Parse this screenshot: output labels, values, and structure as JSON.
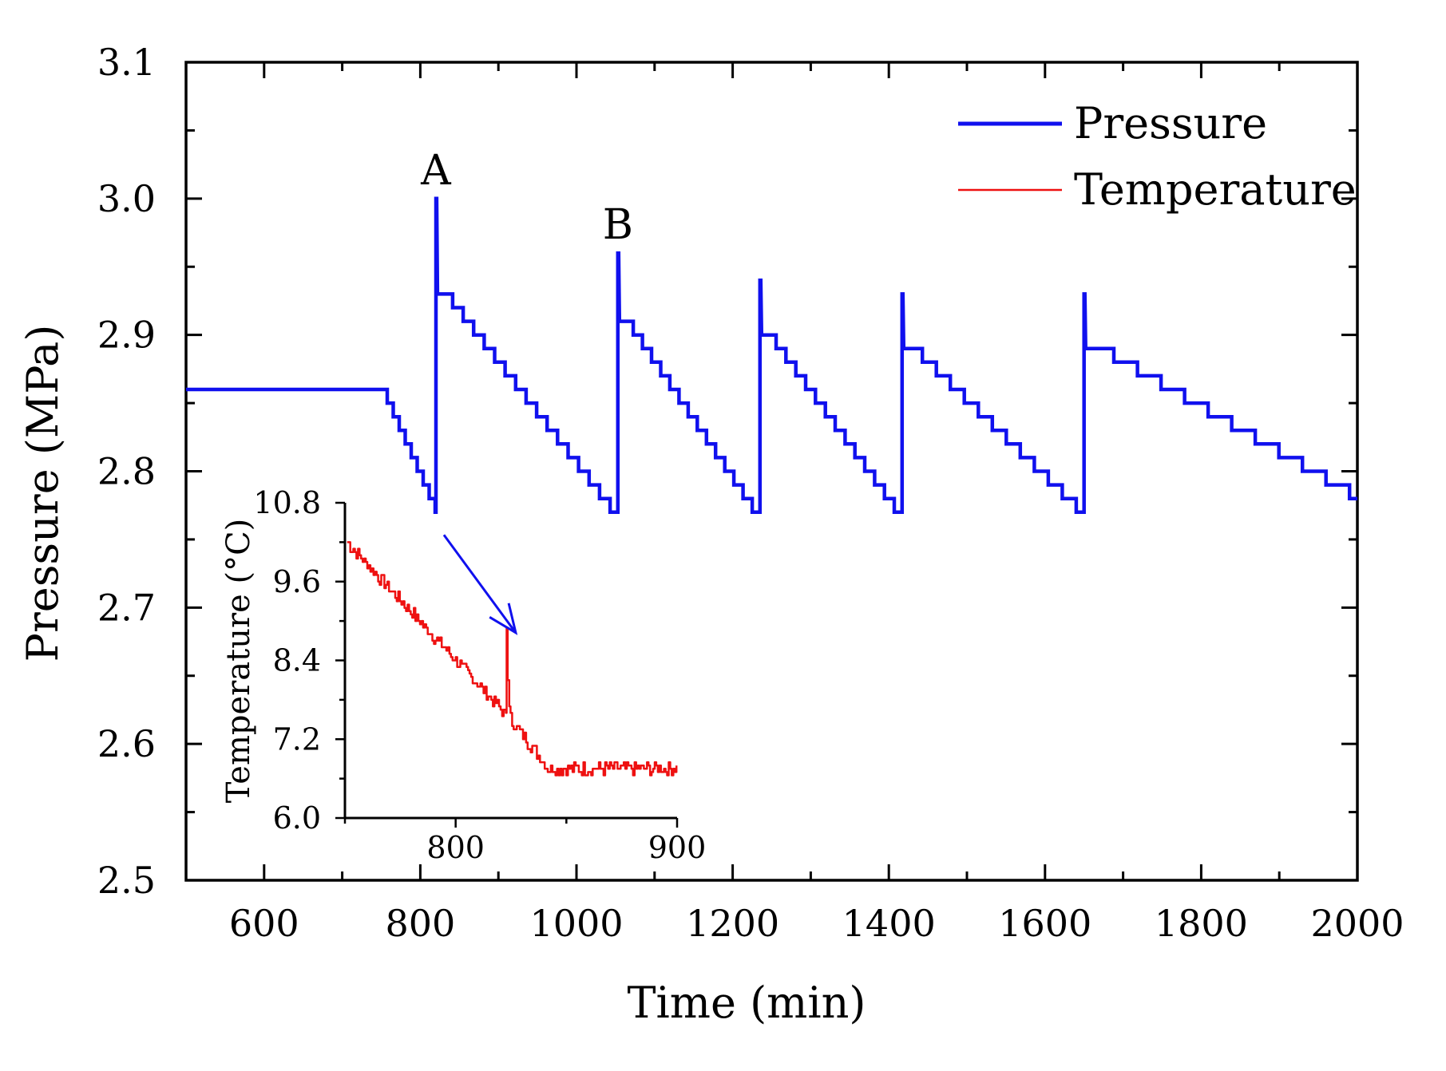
{
  "chart_data": [
    {
      "id": "main",
      "type": "line",
      "title": "",
      "xlabel": "Time (min)",
      "ylabel": "Pressure (MPa)",
      "xlim": [
        500,
        2000
      ],
      "ylim": [
        2.5,
        3.1
      ],
      "x_ticks": [
        600,
        800,
        1000,
        1200,
        1400,
        1600,
        1800,
        2000
      ],
      "x_minor_ticks": [
        700,
        900,
        1100,
        1300,
        1500,
        1700,
        1900
      ],
      "y_ticks": [
        2.5,
        2.6,
        2.7,
        2.8,
        2.9,
        3.0,
        3.1
      ],
      "y_minor_ticks": [
        2.55,
        2.65,
        2.75,
        2.85,
        2.95,
        3.05
      ],
      "x_tick_labels": [
        "600",
        "800",
        "1000",
        "1200",
        "1400",
        "1600",
        "1800",
        "2000"
      ],
      "y_tick_labels": [
        "2.5",
        "2.6",
        "2.7",
        "2.8",
        "2.9",
        "3.0",
        "3.1"
      ],
      "grid": false,
      "legend": {
        "placement": "top-right",
        "entries": [
          {
            "label": "Pressure",
            "color": "#1010ee"
          },
          {
            "label": "Temperature",
            "color": "#ee1111"
          }
        ]
      },
      "annotations": [
        {
          "text": "A",
          "x": 820,
          "y": 3.0
        },
        {
          "text": "B",
          "x": 1053,
          "y": 2.96
        }
      ],
      "series": [
        {
          "name": "Pressure",
          "color": "#1010ee",
          "style": "staircase-sawtooth",
          "plateau": {
            "x": [
              500,
              750
            ],
            "value": 2.86
          },
          "initial_descent": {
            "x": [
              750,
              820
            ],
            "from": 2.86,
            "to": 2.77
          },
          "cycles": [
            {
              "start": 820,
              "end": 1053,
              "peak": 3.0,
              "after_peak": 2.93,
              "low": 2.77
            },
            {
              "start": 1053,
              "end": 1235,
              "peak": 2.96,
              "after_peak": 2.91,
              "low": 2.77
            },
            {
              "start": 1235,
              "end": 1417,
              "peak": 2.94,
              "after_peak": 2.9,
              "low": 2.77
            },
            {
              "start": 1417,
              "end": 1650,
              "peak": 2.93,
              "after_peak": 2.89,
              "low": 2.77
            },
            {
              "start": 1650,
              "end": 2000,
              "peak": 2.93,
              "after_peak": 2.89,
              "low": 2.78
            }
          ]
        }
      ]
    },
    {
      "id": "inset",
      "type": "line",
      "title": "",
      "xlabel": "",
      "ylabel": "Temperature (°C)",
      "xlim": [
        750,
        900
      ],
      "ylim": [
        6.0,
        10.8
      ],
      "x_ticks": [
        800,
        900
      ],
      "x_minor_ticks": [
        750,
        850
      ],
      "y_ticks": [
        6.0,
        7.2,
        8.4,
        9.6,
        10.8
      ],
      "y_minor_ticks": [
        6.6,
        7.8,
        9.0,
        10.2
      ],
      "x_tick_labels": [
        "800",
        "900"
      ],
      "y_tick_labels": [
        "6.0",
        "7.2",
        "8.4",
        "9.6",
        "10.8"
      ],
      "grid": false,
      "arrow": {
        "from": {
          "x": 820,
          "y": 2.765
        },
        "to": {
          "x": 830,
          "y": 8.7
        },
        "color": "#1010ee"
      },
      "series": [
        {
          "name": "Temperature",
          "color": "#ee1111",
          "start": {
            "x": 751,
            "y": 10.2
          },
          "decline_end": {
            "x": 822,
            "y": 7.6
          },
          "spike": {
            "x": 823,
            "y": 8.9
          },
          "settle": {
            "x": 843,
            "y": 6.7
          },
          "end": {
            "x": 900,
            "y": 6.75
          },
          "noise_amplitude": 0.1
        }
      ]
    }
  ]
}
